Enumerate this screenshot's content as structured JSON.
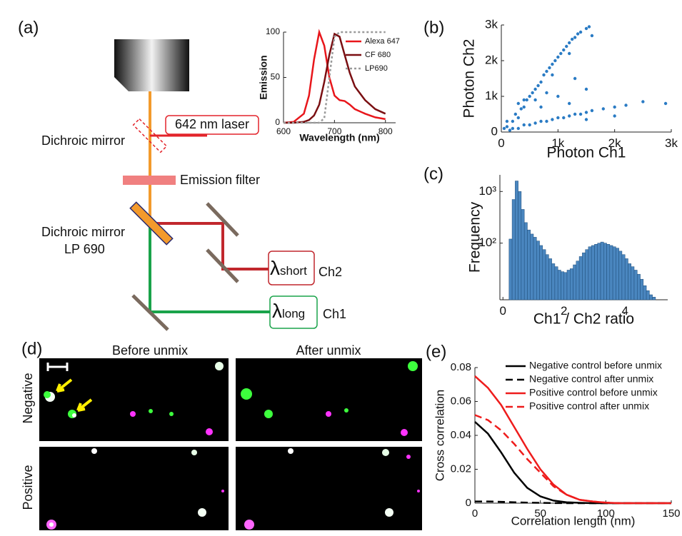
{
  "panel_labels": [
    "(a)",
    "(b)",
    "(c)",
    "(d)",
    "(e)"
  ],
  "diagram": {
    "laser_label": "642 nm laser",
    "dichroic_label": "Dichroic mirror",
    "filter_label": "Emission filter",
    "lp_label_1": "Dichroic mirror",
    "lp_label_2": "LP 690",
    "short_symbol": "λ",
    "short_text": "short",
    "ch2": "Ch2",
    "long_symbol": "λ",
    "long_text": "long",
    "ch1": "Ch1"
  },
  "images": {
    "columns": [
      "Before unmix",
      "After unmix"
    ],
    "rows": [
      "Negative",
      "Positive"
    ]
  },
  "chart_data": [
    {
      "type": "line",
      "xlabel": "Wavelength (nm)",
      "ylabel": "Emission",
      "x": [
        600,
        620,
        640,
        650,
        660,
        670,
        680,
        690,
        700,
        710,
        720,
        730,
        740,
        760,
        780,
        800
      ],
      "series": [
        {
          "name": "Alexa 647",
          "color": "#e8161b",
          "style": "solid",
          "values": [
            0,
            1,
            10,
            30,
            70,
            100,
            85,
            50,
            30,
            25,
            24,
            20,
            15,
            10,
            6,
            4
          ]
        },
        {
          "name": "CF 680",
          "color": "#7a0f12",
          "style": "solid",
          "values": [
            0,
            0,
            1,
            3,
            8,
            20,
            45,
            75,
            98,
            95,
            75,
            55,
            40,
            25,
            15,
            10
          ]
        },
        {
          "name": "LP690",
          "color": "#9a9a9a",
          "style": "dotted",
          "values": [
            0,
            0,
            0,
            0,
            0,
            0,
            5,
            50,
            95,
            100,
            100,
            100,
            100,
            100,
            100,
            100
          ]
        }
      ],
      "xlim": [
        600,
        820
      ],
      "xticks": [
        600,
        700,
        800
      ],
      "ylim": [
        0,
        100
      ],
      "yticks": [
        0,
        50,
        100
      ],
      "legend": "upper right"
    },
    {
      "type": "scatter",
      "xlabel": "Photon Ch1",
      "ylabel": "Photon Ch2",
      "color": "#2a7bc4",
      "x": [
        100,
        200,
        250,
        300,
        350,
        400,
        450,
        500,
        550,
        600,
        650,
        700,
        750,
        800,
        850,
        900,
        950,
        1000,
        1050,
        1100,
        1150,
        1200,
        1250,
        1300,
        1350,
        1400,
        1500,
        1550,
        1600,
        1200,
        900,
        600,
        400,
        300,
        300,
        400,
        500,
        600,
        700,
        800,
        900,
        1000,
        1100,
        1200,
        1300,
        1400,
        1500,
        1600,
        1800,
        2000,
        2200,
        2500,
        2900,
        2000,
        1500,
        1000,
        1200,
        700,
        1500,
        800,
        1300,
        200,
        150,
        100,
        50
      ],
      "values": [
        150,
        300,
        500,
        400,
        650,
        700,
        900,
        1000,
        1100,
        1200,
        1300,
        1400,
        1600,
        1700,
        1800,
        1900,
        2000,
        2100,
        2200,
        2300,
        2400,
        2500,
        2600,
        2650,
        2750,
        2800,
        2900,
        2950,
        2700,
        2200,
        1600,
        900,
        900,
        800,
        100,
        200,
        200,
        250,
        300,
        300,
        350,
        400,
        400,
        450,
        500,
        500,
        550,
        600,
        650,
        700,
        750,
        850,
        800,
        450,
        350,
        1000,
        800,
        700,
        1200,
        1100,
        1500,
        100,
        50,
        300,
        100
      ],
      "xlim": [
        0,
        3000
      ],
      "xticks": [
        0,
        {
          "value": 1000,
          "label": "1k"
        },
        {
          "value": 2000,
          "label": "2k"
        },
        {
          "value": 3000,
          "label": "3k"
        }
      ],
      "ylim": [
        0,
        3000
      ],
      "yticks": [
        0,
        {
          "value": 1000,
          "label": "1k"
        },
        {
          "value": 2000,
          "label": "2k"
        },
        {
          "value": 3000,
          "label": "3k"
        }
      ]
    },
    {
      "type": "histogram",
      "xlabel": "Ch1 / Ch2 ratio",
      "ylabel": "Frequency",
      "color": "#4a86bf",
      "log_y": true,
      "bins": [
        0.2,
        0.3,
        0.4,
        0.5,
        0.6,
        0.7,
        0.8,
        0.9,
        1.0,
        1.1,
        1.2,
        1.3,
        1.4,
        1.5,
        1.6,
        1.7,
        1.8,
        1.9,
        2.0,
        2.1,
        2.2,
        2.3,
        2.4,
        2.5,
        2.6,
        2.7,
        2.8,
        2.9,
        3.0,
        3.1,
        3.2,
        3.3,
        3.4,
        3.5,
        3.6,
        3.7,
        3.8,
        3.9,
        4.0,
        4.1,
        4.2,
        4.3,
        4.4,
        4.5,
        4.6,
        4.7,
        4.8,
        4.9,
        5.0
      ],
      "values": [
        120,
        700,
        1600,
        1000,
        450,
        250,
        180,
        150,
        130,
        110,
        90,
        75,
        60,
        50,
        40,
        35,
        30,
        28,
        27,
        30,
        32,
        38,
        45,
        55,
        65,
        75,
        85,
        90,
        95,
        100,
        105,
        100,
        95,
        90,
        85,
        80,
        70,
        60,
        50,
        40,
        35,
        30,
        25,
        20,
        15,
        12,
        10,
        9
      ],
      "xlim": [
        -0.1,
        5.4
      ],
      "xticks": [
        0,
        2,
        4
      ],
      "ylim": [
        8,
        2100
      ],
      "yticks": [
        {
          "value": 100,
          "label": "10²"
        },
        {
          "value": 1000,
          "label": "10³"
        }
      ]
    },
    {
      "type": "line",
      "xlabel": "Correlation length (nm)",
      "ylabel": "Cross correlation",
      "x": [
        0,
        10,
        20,
        30,
        40,
        50,
        60,
        70,
        80,
        90,
        100,
        110,
        120,
        130,
        140,
        150
      ],
      "series": [
        {
          "name": "Negative control before unmix",
          "color": "#000000",
          "style": "solid",
          "values": [
            0.048,
            0.041,
            0.03,
            0.018,
            0.009,
            0.004,
            0.0015,
            0.0005,
            0.0002,
            0,
            0,
            0,
            0,
            0,
            0,
            0
          ]
        },
        {
          "name": "Negative control after unmix",
          "color": "#000000",
          "style": "dashed",
          "values": [
            0.001,
            0.001,
            0.0008,
            0.0005,
            0.0003,
            0.0002,
            0.0001,
            0,
            0,
            0,
            0,
            0,
            0,
            0,
            0,
            0
          ]
        },
        {
          "name": "Positive control before unmix",
          "color": "#ee1c1c",
          "style": "solid",
          "values": [
            0.075,
            0.068,
            0.058,
            0.045,
            0.032,
            0.02,
            0.011,
            0.005,
            0.002,
            0.001,
            0.0003,
            0,
            0,
            0,
            0,
            0
          ]
        },
        {
          "name": "Positive control after unmix",
          "color": "#ee1c1c",
          "style": "dashed",
          "values": [
            0.052,
            0.049,
            0.043,
            0.035,
            0.026,
            0.018,
            0.01,
            0.005,
            0.002,
            0.001,
            0.0003,
            0,
            0,
            0,
            0,
            0
          ]
        }
      ],
      "xlim": [
        0,
        150
      ],
      "xticks": [
        0,
        50,
        100,
        150
      ],
      "ylim": [
        0,
        0.08
      ],
      "yticks": [
        0,
        0.02,
        0.04,
        0.06,
        0.08
      ],
      "legend": "upper right"
    }
  ]
}
